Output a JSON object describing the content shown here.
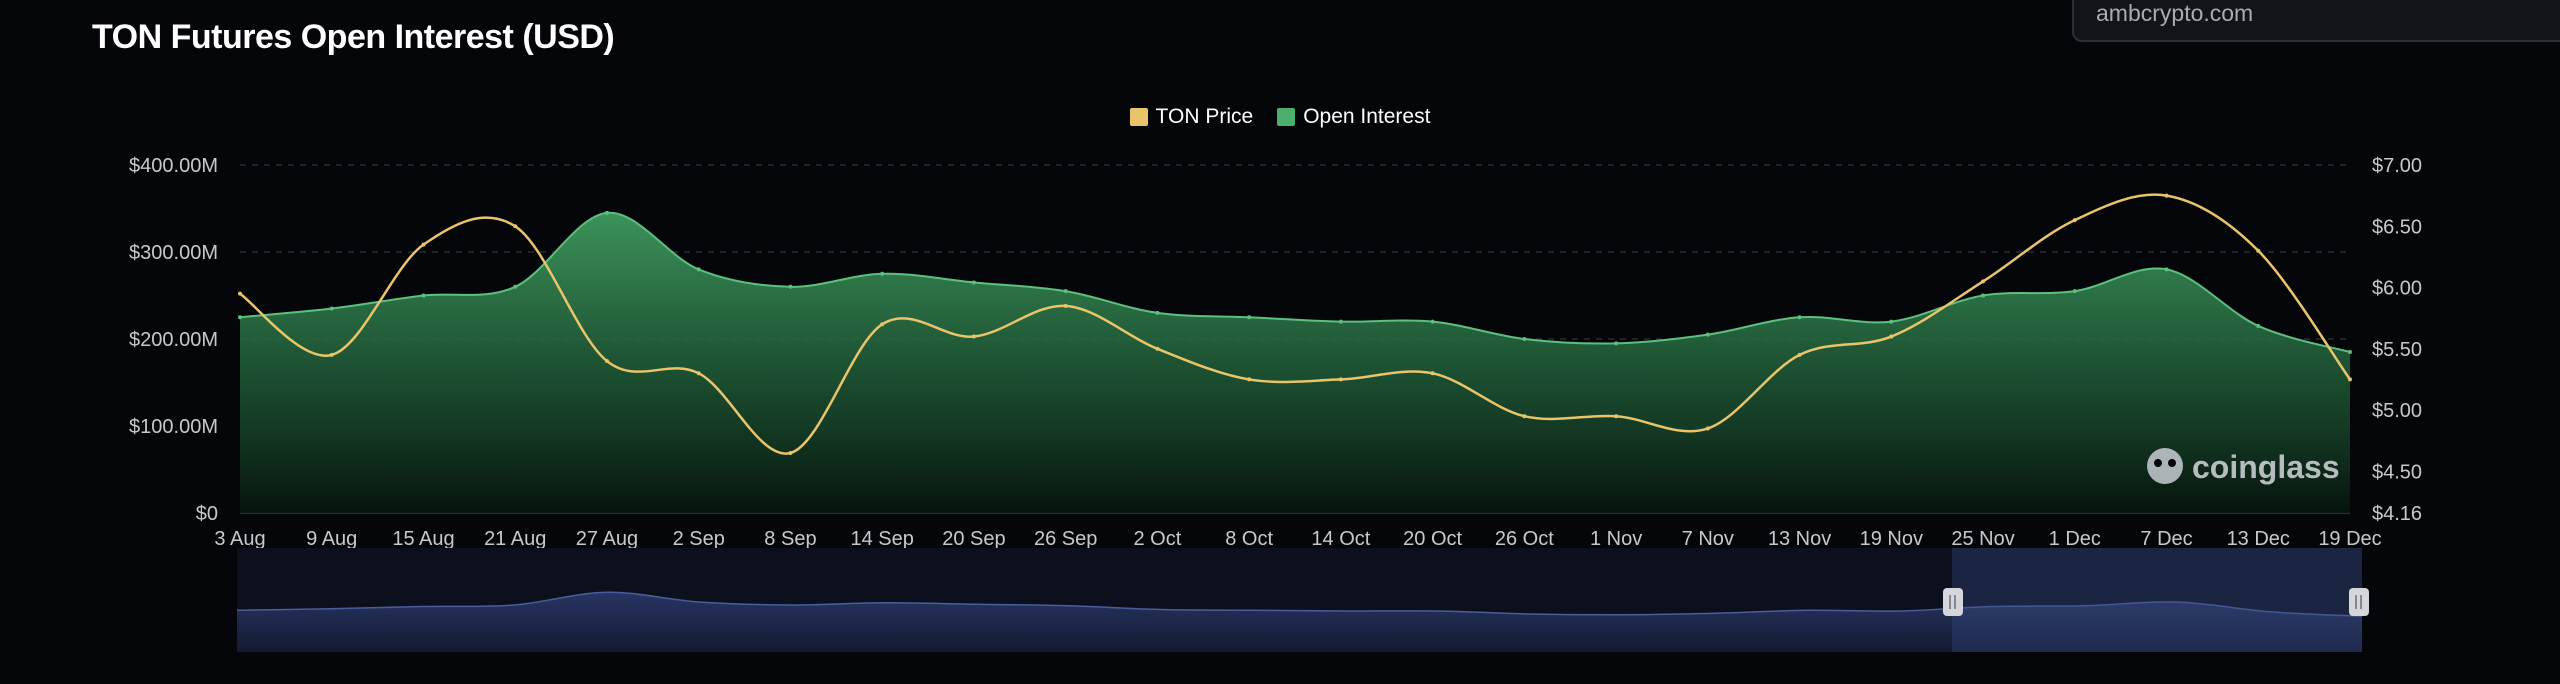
{
  "title": "TON Futures Open Interest (USD)",
  "watermark_url": "ambcrypto.com",
  "brand": "coinglass",
  "colors": {
    "background": "#05060a",
    "price": "#e9c46a",
    "open_interest": "#4caf6e",
    "grid": "#2a2c33",
    "navigator": "#1b2440"
  },
  "chart_data": {
    "type": "area",
    "x": [
      "3 Aug",
      "9 Aug",
      "15 Aug",
      "21 Aug",
      "27 Aug",
      "2 Sep",
      "8 Sep",
      "14 Sep",
      "20 Sep",
      "26 Sep",
      "2 Oct",
      "8 Oct",
      "14 Oct",
      "20 Oct",
      "26 Oct",
      "1 Nov",
      "7 Nov",
      "13 Nov",
      "19 Nov",
      "25 Nov",
      "1 Dec",
      "7 Dec",
      "13 Dec",
      "19 Dec"
    ],
    "left_axis": {
      "ticks": [
        "$0",
        "$100.00M",
        "$200.00M",
        "$300.00M",
        "$400.00M"
      ],
      "ylim": [
        0,
        400
      ]
    },
    "right_axis": {
      "ticks": [
        "$4.16",
        "$4.50",
        "$5.00",
        "$5.50",
        "$6.00",
        "$6.50",
        "$7.00"
      ],
      "ylim": [
        4.16,
        7.0
      ]
    },
    "grid": true,
    "legend_position": "top-center",
    "series": [
      {
        "name": "Open Interest",
        "axis": "left",
        "type": "area",
        "values": [
          225,
          235,
          250,
          260,
          345,
          280,
          260,
          275,
          265,
          255,
          230,
          225,
          220,
          220,
          200,
          195,
          205,
          225,
          220,
          250,
          255,
          280,
          215,
          185
        ]
      },
      {
        "name": "TON Price",
        "axis": "right",
        "type": "line",
        "values": [
          5.95,
          5.45,
          6.35,
          6.5,
          5.4,
          5.3,
          4.65,
          5.7,
          5.6,
          5.85,
          5.5,
          5.25,
          5.25,
          5.3,
          4.95,
          4.95,
          4.85,
          5.45,
          5.6,
          6.05,
          6.55,
          6.75,
          6.3,
          5.25
        ]
      }
    ]
  }
}
